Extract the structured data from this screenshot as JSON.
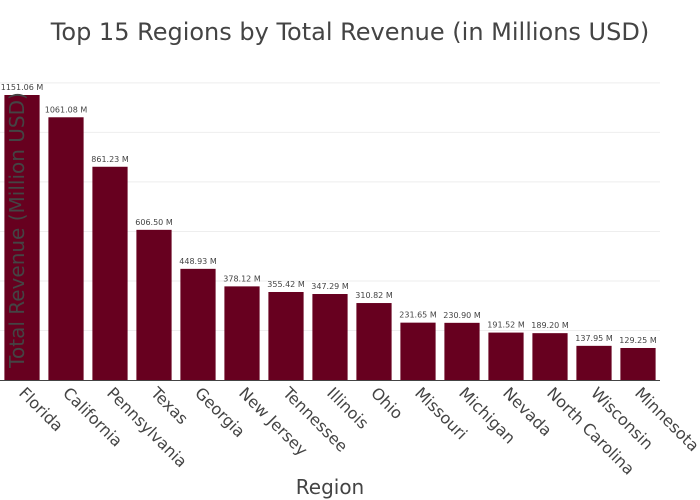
{
  "chart_data": {
    "type": "bar",
    "title": "Top 15 Regions by Total Revenue (in Millions USD)",
    "xlabel": "Region",
    "ylabel": "Total Revenue (Million USD)",
    "categories": [
      "Florida",
      "California",
      "Pennsylvania",
      "Texas",
      "Georgia",
      "New Jersey",
      "Tennessee",
      "Illinois",
      "Ohio",
      "Missouri",
      "Michigan",
      "Nevada",
      "North Carolina",
      "Wisconsin",
      "Minnesota"
    ],
    "values": [
      1151.06,
      1061.08,
      861.23,
      606.5,
      448.93,
      378.12,
      355.42,
      347.29,
      310.82,
      231.65,
      230.9,
      191.52,
      189.2,
      137.95,
      129.25
    ],
    "data_labels": [
      "1151.06 M",
      "1061.08 M",
      "861.23 M",
      "606.50 M",
      "448.93 M",
      "378.12 M",
      "355.42 M",
      "347.29 M",
      "310.82 M",
      "231.65 M",
      "230.90 M",
      "191.52 M",
      "189.20 M",
      "137.95 M",
      "129.25 M"
    ],
    "ylim": [
      0,
      1211.64
    ],
    "grid": true,
    "y_tick_labels_shown": false,
    "bar_color": "#67001f",
    "axis_color": "#444444",
    "grid_color": "#eeeeee"
  }
}
